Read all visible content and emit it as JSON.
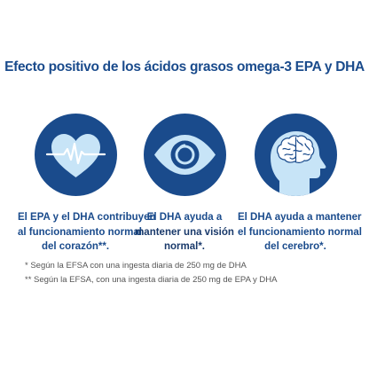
{
  "title": "Efecto positivo de los ácidos grasos omega-3 EPA y DHA",
  "benefits": [
    {
      "icon": "heart-pulse-icon",
      "lines": [
        "El EPA y el DHA contribuyen",
        "al funcionamiento normal",
        "del corazón**."
      ]
    },
    {
      "icon": "eye-icon",
      "lines": [
        "El DHA ayuda a",
        "mantener una visión",
        "normal*."
      ]
    },
    {
      "icon": "brain-head-icon",
      "lines": [
        "El DHA ayuda a mantener",
        "el funcionamiento normal",
        "del cerebro*."
      ]
    }
  ],
  "footnotes": [
    "* Según la EFSA con una ingesta diaria de 250 mg de DHA",
    "** Según la EFSA, con una ingesta diaria de 250 mg de EPA y DHA"
  ],
  "colors": {
    "primary": "#1a4b8c",
    "light_blue": "#c7e4f7",
    "note_gray": "#555555"
  }
}
